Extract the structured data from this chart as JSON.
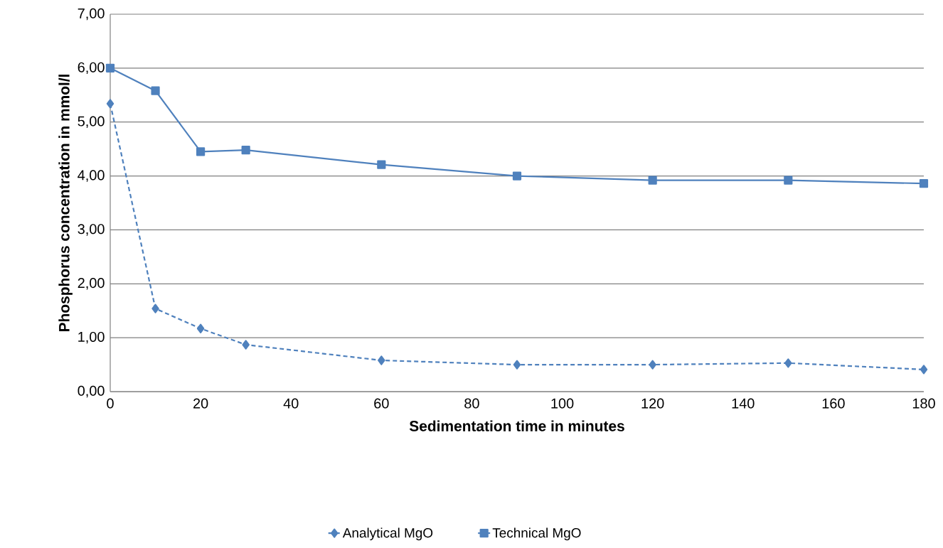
{
  "chart_data": {
    "type": "line",
    "xlabel": "Sedimentation time in minutes",
    "ylabel": "Phosphorus concentration in mmol/l",
    "x": [
      0,
      10,
      20,
      30,
      60,
      90,
      120,
      150,
      180
    ],
    "series": [
      {
        "name": "Analytical MgO",
        "color": "#4f81bd",
        "marker": "diamond",
        "line_style": "dashed",
        "values": [
          5.34,
          1.54,
          1.17,
          0.87,
          0.58,
          0.5,
          0.5,
          0.53,
          0.41
        ]
      },
      {
        "name": "Technical MgO",
        "color": "#4f81bd",
        "marker": "square",
        "line_style": "solid",
        "values": [
          6.0,
          5.58,
          4.45,
          4.48,
          4.21,
          4.0,
          3.92,
          3.92,
          3.86
        ]
      }
    ],
    "xlim": [
      0,
      180
    ],
    "xticks": [
      0,
      20,
      40,
      60,
      80,
      100,
      120,
      140,
      160,
      180
    ],
    "ylim": [
      0,
      7
    ],
    "yticks": [
      {
        "value": 0,
        "label": "0,00"
      },
      {
        "value": 1,
        "label": "1,00"
      },
      {
        "value": 2,
        "label": "2,00"
      },
      {
        "value": 3,
        "label": "3,00"
      },
      {
        "value": 4,
        "label": "4,00"
      },
      {
        "value": 5,
        "label": "5,00"
      },
      {
        "value": 6,
        "label": "6,00"
      },
      {
        "value": 7,
        "label": "7,00"
      }
    ],
    "grid": "y",
    "legend": "bottom"
  }
}
